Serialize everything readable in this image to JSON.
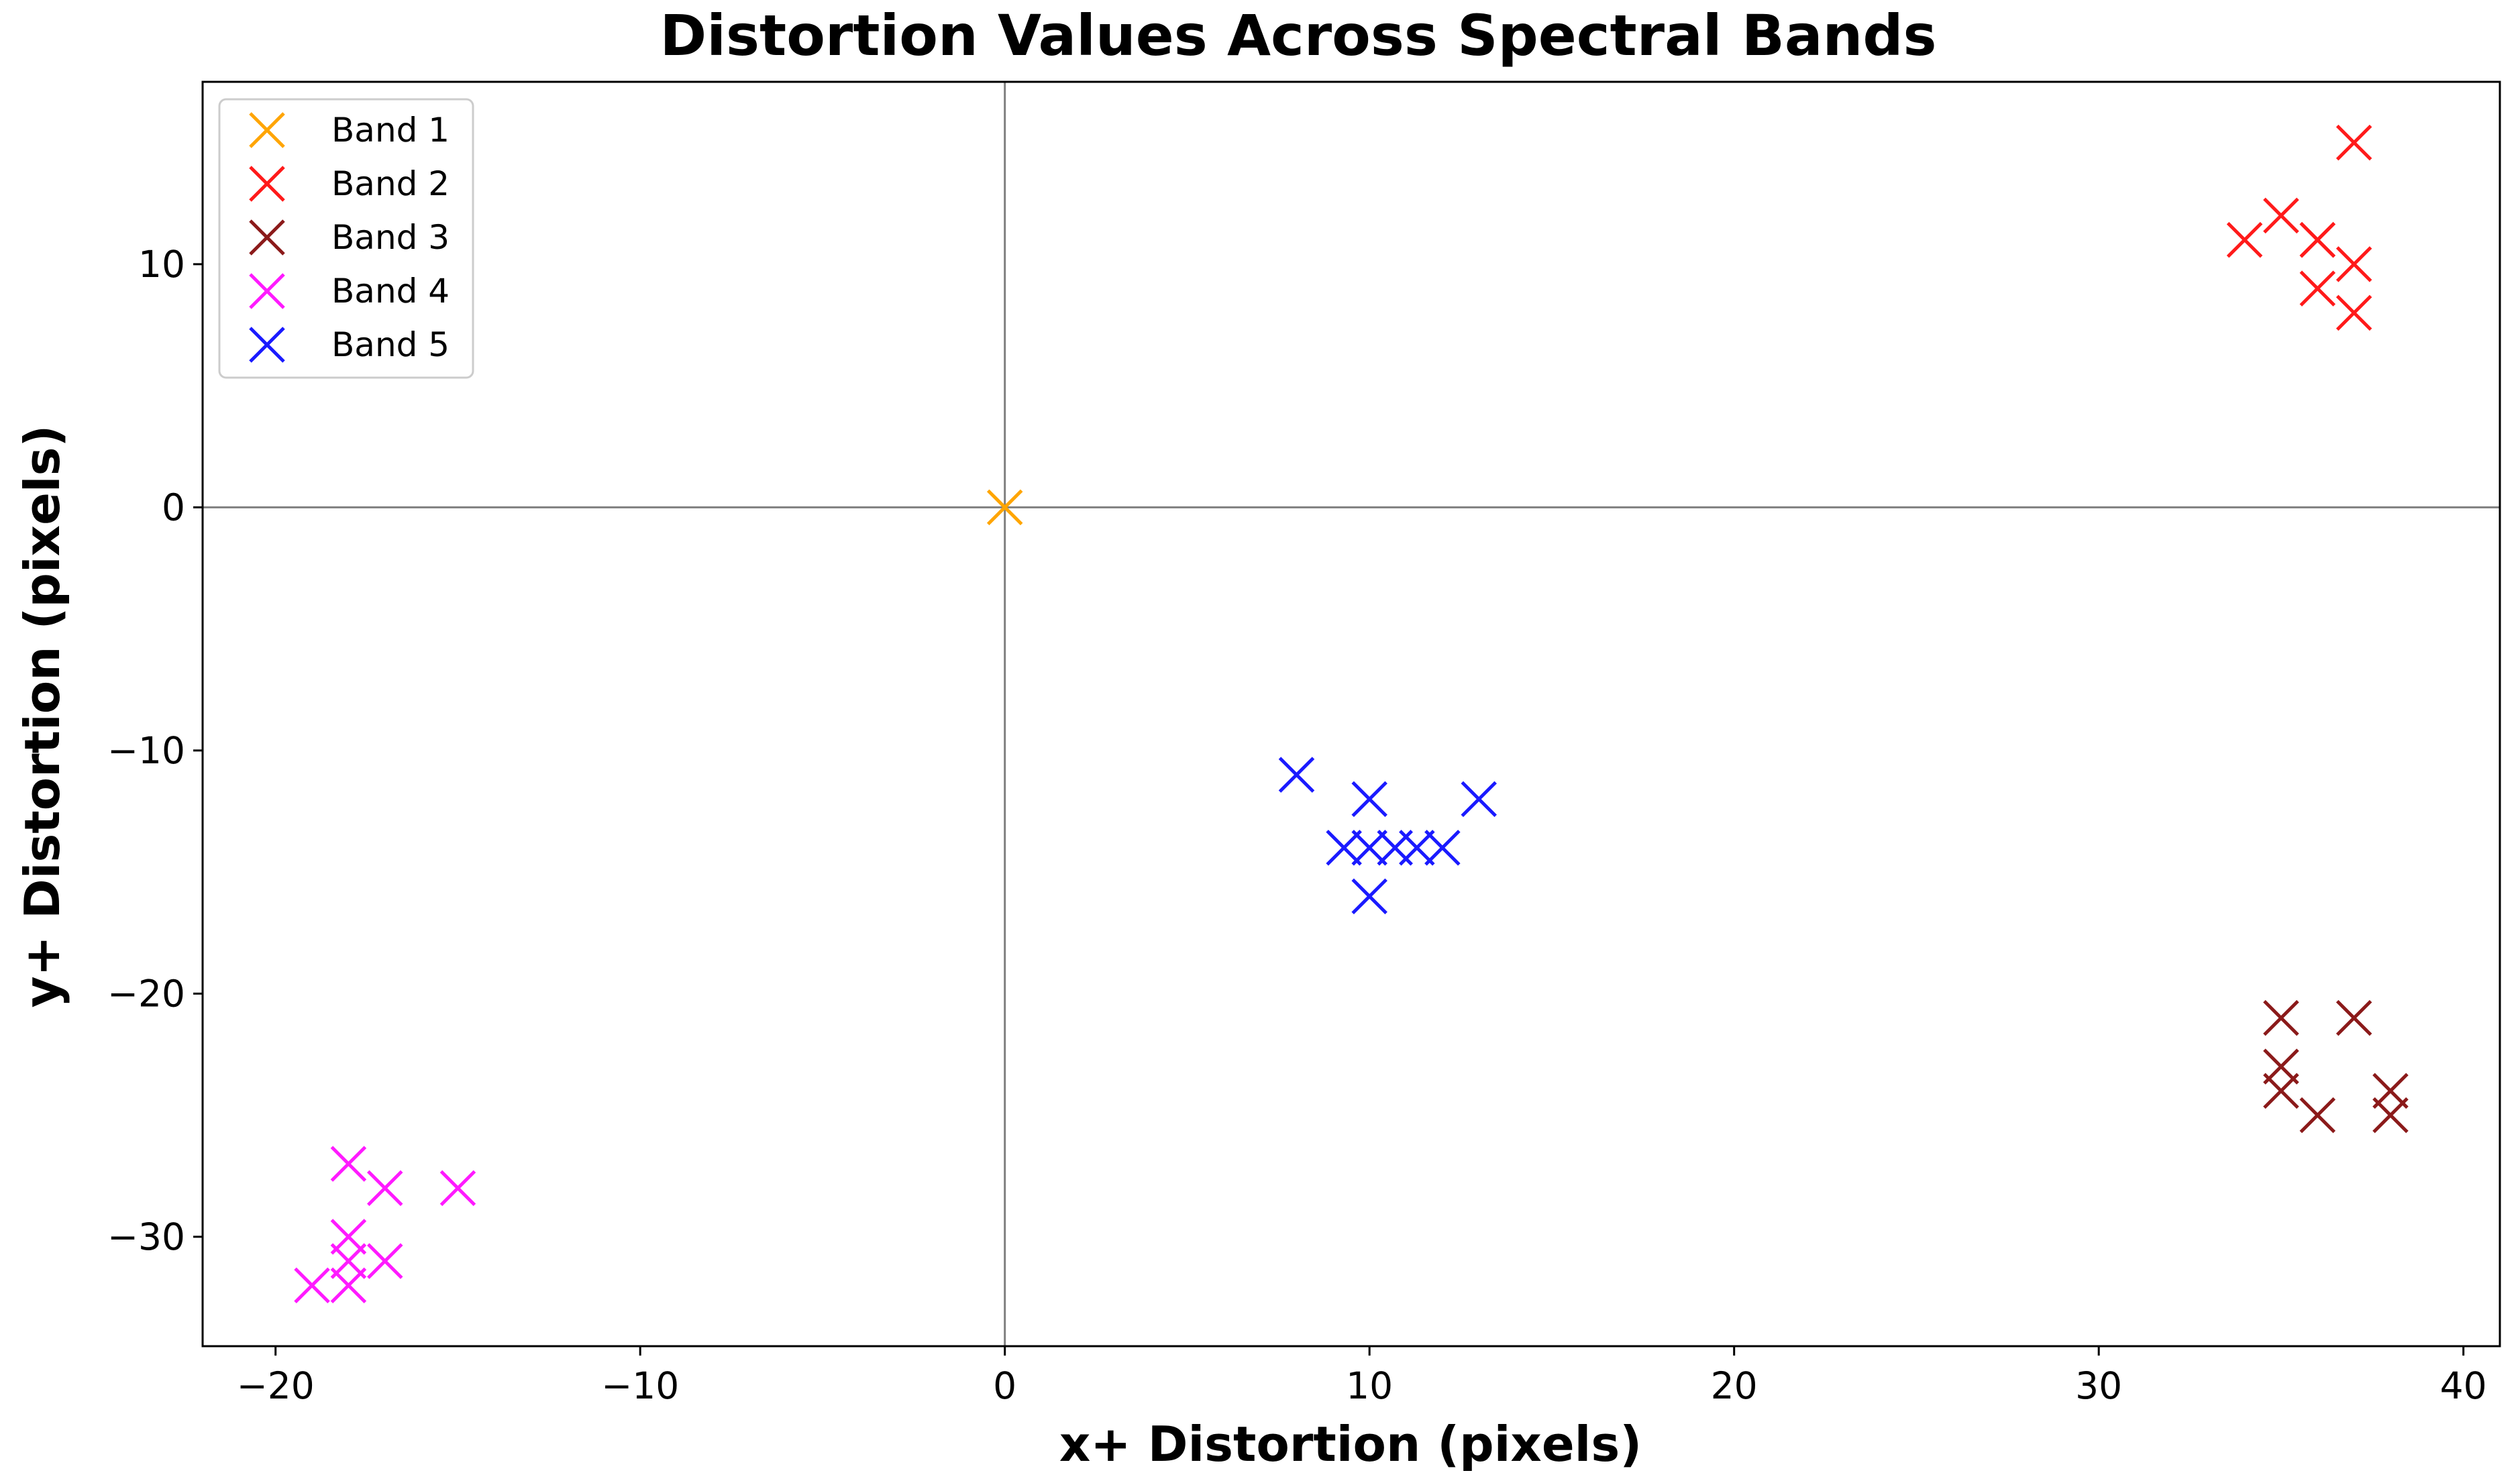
{
  "chart_data": {
    "type": "scatter",
    "title": "Distortion Values Across Spectral Bands",
    "xlabel": "x+ Distortion (pixels)",
    "ylabel": "y+ Distortion (pixels)",
    "xlim": [
      -22,
      41
    ],
    "ylim": [
      -34.5,
      17.5
    ],
    "xticks": [
      -20,
      -10,
      0,
      10,
      20,
      30,
      40
    ],
    "yticks": [
      10,
      0,
      -10,
      -20,
      -30
    ],
    "xtick_labels": [
      "−20",
      "−10",
      "0",
      "10",
      "20",
      "30",
      "40"
    ],
    "ytick_labels": [
      "10",
      "0",
      "−10",
      "−20",
      "−30"
    ],
    "marker": "x",
    "reference_lines": {
      "x": 0,
      "y": 0
    },
    "grid": false,
    "legend_position": "top-left",
    "series": [
      {
        "name": "Band 1",
        "color": "#ffa500",
        "points": [
          [
            0,
            0
          ]
        ]
      },
      {
        "name": "Band 2",
        "color": "#ff1a1a",
        "points": [
          [
            37,
            15
          ],
          [
            35,
            12
          ],
          [
            34,
            11
          ],
          [
            36,
            11
          ],
          [
            36,
            11
          ],
          [
            37,
            10
          ],
          [
            36,
            9
          ],
          [
            37,
            8
          ]
        ]
      },
      {
        "name": "Band 3",
        "color": "#8b1a1a",
        "points": [
          [
            35,
            -21
          ],
          [
            37,
            -21
          ],
          [
            35,
            -23
          ],
          [
            35,
            -24
          ],
          [
            36,
            -25
          ],
          [
            38,
            -24
          ],
          [
            38,
            -25
          ]
        ]
      },
      {
        "name": "Band 4",
        "color": "#ff1aff",
        "points": [
          [
            -18,
            -27
          ],
          [
            -17,
            -28
          ],
          [
            -15,
            -28
          ],
          [
            -18,
            -30
          ],
          [
            -17,
            -31
          ],
          [
            -18,
            -31
          ],
          [
            -18,
            -32
          ],
          [
            -19,
            -32
          ]
        ]
      },
      {
        "name": "Band 5",
        "color": "#1a1aff",
        "points": [
          [
            8,
            -11
          ],
          [
            10,
            -12
          ],
          [
            13,
            -12
          ],
          [
            9.3,
            -14
          ],
          [
            10,
            -14
          ],
          [
            10.7,
            -14
          ],
          [
            11.3,
            -14
          ],
          [
            12,
            -14
          ],
          [
            10,
            -16
          ]
        ]
      }
    ]
  }
}
